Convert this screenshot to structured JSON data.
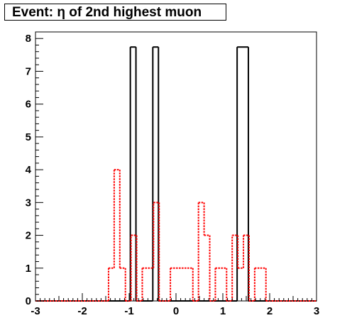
{
  "chart_data": {
    "type": "histogram",
    "title": "Event: η of 2nd highest muon",
    "xlabel": "",
    "ylabel": "",
    "xlim": [
      -3,
      3
    ],
    "ylim": [
      0,
      8.2
    ],
    "x_ticks": [
      -3,
      -2,
      -1,
      0,
      1,
      2,
      3
    ],
    "y_ticks": [
      0,
      1,
      2,
      3,
      4,
      5,
      6,
      7,
      8
    ],
    "grid": false,
    "legend": "none",
    "series": [
      {
        "style": "solid",
        "color": "#000000",
        "bins": [
          {
            "x0": -3.0,
            "x1": -0.975,
            "y": 0
          },
          {
            "x0": -0.975,
            "x1": -0.855,
            "y": 7.74
          },
          {
            "x0": -0.855,
            "x1": -0.495,
            "y": 0
          },
          {
            "x0": -0.495,
            "x1": -0.375,
            "y": 7.74
          },
          {
            "x0": -0.375,
            "x1": 1.305,
            "y": 0
          },
          {
            "x0": 1.305,
            "x1": 1.545,
            "y": 7.74
          },
          {
            "x0": 1.545,
            "x1": 3.0,
            "y": 0
          }
        ]
      },
      {
        "style": "dashed",
        "color": "#ff0000",
        "bins": [
          {
            "x0": -3.0,
            "x1": -1.44,
            "y": 0
          },
          {
            "x0": -1.44,
            "x1": -1.32,
            "y": 1
          },
          {
            "x0": -1.32,
            "x1": -1.2,
            "y": 4
          },
          {
            "x0": -1.2,
            "x1": -1.08,
            "y": 1
          },
          {
            "x0": -1.08,
            "x1": -0.96,
            "y": 0
          },
          {
            "x0": -0.96,
            "x1": -0.84,
            "y": 2
          },
          {
            "x0": -0.84,
            "x1": -0.72,
            "y": 0
          },
          {
            "x0": -0.72,
            "x1": -0.48,
            "y": 1
          },
          {
            "x0": -0.48,
            "x1": -0.36,
            "y": 3
          },
          {
            "x0": -0.36,
            "x1": -0.12,
            "y": 0
          },
          {
            "x0": -0.12,
            "x1": 0.36,
            "y": 1
          },
          {
            "x0": 0.36,
            "x1": 0.48,
            "y": 0
          },
          {
            "x0": 0.48,
            "x1": 0.6,
            "y": 3
          },
          {
            "x0": 0.6,
            "x1": 0.72,
            "y": 2
          },
          {
            "x0": 0.72,
            "x1": 0.84,
            "y": 0
          },
          {
            "x0": 0.84,
            "x1": 1.08,
            "y": 1
          },
          {
            "x0": 1.08,
            "x1": 1.2,
            "y": 0
          },
          {
            "x0": 1.2,
            "x1": 1.32,
            "y": 2
          },
          {
            "x0": 1.32,
            "x1": 1.44,
            "y": 1
          },
          {
            "x0": 1.44,
            "x1": 1.56,
            "y": 2
          },
          {
            "x0": 1.56,
            "x1": 1.68,
            "y": 0
          },
          {
            "x0": 1.68,
            "x1": 1.8,
            "y": 1
          },
          {
            "x0": 1.8,
            "x1": 1.92,
            "y": 1
          },
          {
            "x0": 1.92,
            "x1": 3.0,
            "y": 0
          }
        ]
      }
    ]
  }
}
